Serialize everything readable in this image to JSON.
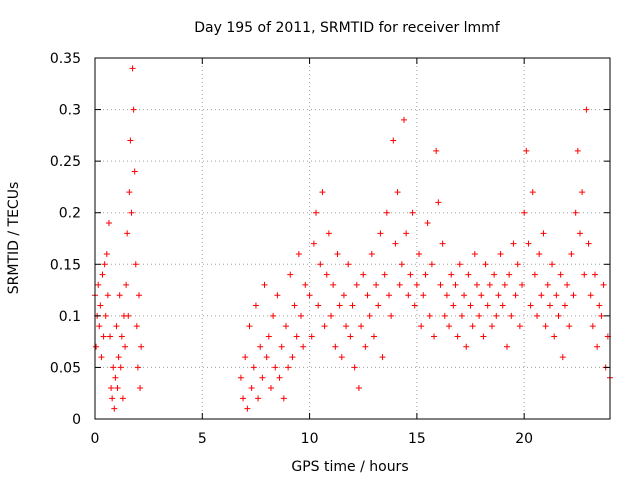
{
  "chart_data": {
    "type": "scatter",
    "title": "Day 195 of 2011, SRMTID for receiver lmmf",
    "xlabel": "GPS time / hours",
    "ylabel": "SRMTID / TECUs",
    "xlim": [
      0,
      24
    ],
    "ylim": [
      0,
      0.35
    ],
    "xticks": [
      0,
      5,
      10,
      15,
      20
    ],
    "xtick_labels": [
      "0",
      "5",
      "10",
      "15",
      "20"
    ],
    "yticks": [
      0,
      0.05,
      0.1,
      0.15,
      0.2,
      0.25,
      0.3,
      0.35
    ],
    "ytick_labels": [
      "0",
      "0.05",
      "0.1",
      "0.15",
      "0.2",
      "0.25",
      "0.3",
      "0.35"
    ],
    "grid": true,
    "marker": "+",
    "marker_color": "#ff0000",
    "series": [
      {
        "name": "SRMTID",
        "points": [
          [
            0.0,
            0.12
          ],
          [
            0.05,
            0.07
          ],
          [
            0.1,
            0.1
          ],
          [
            0.15,
            0.13
          ],
          [
            0.2,
            0.09
          ],
          [
            0.25,
            0.11
          ],
          [
            0.3,
            0.06
          ],
          [
            0.35,
            0.14
          ],
          [
            0.4,
            0.08
          ],
          [
            0.45,
            0.15
          ],
          [
            0.5,
            0.1
          ],
          [
            0.55,
            0.16
          ],
          [
            0.6,
            0.12
          ],
          [
            0.65,
            0.19
          ],
          [
            0.7,
            0.08
          ],
          [
            0.75,
            0.03
          ],
          [
            0.8,
            0.02
          ],
          [
            0.85,
            0.05
          ],
          [
            0.9,
            0.01
          ],
          [
            0.95,
            0.04
          ],
          [
            1.0,
            0.09
          ],
          [
            1.05,
            0.03
          ],
          [
            1.1,
            0.06
          ],
          [
            1.15,
            0.12
          ],
          [
            1.2,
            0.05
          ],
          [
            1.25,
            0.08
          ],
          [
            1.3,
            0.02
          ],
          [
            1.35,
            0.1
          ],
          [
            1.4,
            0.07
          ],
          [
            1.45,
            0.13
          ],
          [
            1.5,
            0.18
          ],
          [
            1.55,
            0.1
          ],
          [
            1.6,
            0.22
          ],
          [
            1.65,
            0.27
          ],
          [
            1.7,
            0.2
          ],
          [
            1.75,
            0.34
          ],
          [
            1.8,
            0.3
          ],
          [
            1.85,
            0.24
          ],
          [
            1.9,
            0.15
          ],
          [
            1.95,
            0.09
          ],
          [
            2.0,
            0.05
          ],
          [
            2.05,
            0.12
          ],
          [
            2.1,
            0.03
          ],
          [
            2.15,
            0.07
          ],
          [
            6.8,
            0.04
          ],
          [
            6.9,
            0.02
          ],
          [
            7.0,
            0.06
          ],
          [
            7.1,
            0.01
          ],
          [
            7.2,
            0.09
          ],
          [
            7.3,
            0.03
          ],
          [
            7.4,
            0.05
          ],
          [
            7.5,
            0.11
          ],
          [
            7.6,
            0.02
          ],
          [
            7.7,
            0.07
          ],
          [
            7.8,
            0.04
          ],
          [
            7.9,
            0.13
          ],
          [
            8.0,
            0.06
          ],
          [
            8.1,
            0.08
          ],
          [
            8.2,
            0.03
          ],
          [
            8.3,
            0.1
          ],
          [
            8.4,
            0.05
          ],
          [
            8.5,
            0.12
          ],
          [
            8.6,
            0.04
          ],
          [
            8.7,
            0.07
          ],
          [
            8.8,
            0.02
          ],
          [
            8.9,
            0.09
          ],
          [
            9.0,
            0.05
          ],
          [
            9.1,
            0.14
          ],
          [
            9.2,
            0.06
          ],
          [
            9.3,
            0.11
          ],
          [
            9.4,
            0.08
          ],
          [
            9.5,
            0.16
          ],
          [
            9.6,
            0.1
          ],
          [
            9.7,
            0.07
          ],
          [
            9.8,
            0.13
          ],
          [
            10.0,
            0.12
          ],
          [
            10.1,
            0.08
          ],
          [
            10.2,
            0.17
          ],
          [
            10.3,
            0.2
          ],
          [
            10.4,
            0.11
          ],
          [
            10.5,
            0.15
          ],
          [
            10.6,
            0.22
          ],
          [
            10.7,
            0.09
          ],
          [
            10.8,
            0.14
          ],
          [
            10.9,
            0.18
          ],
          [
            11.0,
            0.1
          ],
          [
            11.1,
            0.13
          ],
          [
            11.2,
            0.07
          ],
          [
            11.3,
            0.16
          ],
          [
            11.4,
            0.11
          ],
          [
            11.5,
            0.06
          ],
          [
            11.6,
            0.12
          ],
          [
            11.7,
            0.09
          ],
          [
            11.8,
            0.15
          ],
          [
            11.9,
            0.08
          ],
          [
            12.0,
            0.11
          ],
          [
            12.1,
            0.05
          ],
          [
            12.2,
            0.13
          ],
          [
            12.3,
            0.03
          ],
          [
            12.4,
            0.09
          ],
          [
            12.5,
            0.14
          ],
          [
            12.6,
            0.07
          ],
          [
            12.7,
            0.12
          ],
          [
            12.8,
            0.1
          ],
          [
            12.9,
            0.16
          ],
          [
            13.0,
            0.08
          ],
          [
            13.1,
            0.13
          ],
          [
            13.2,
            0.11
          ],
          [
            13.3,
            0.18
          ],
          [
            13.4,
            0.06
          ],
          [
            13.5,
            0.14
          ],
          [
            13.6,
            0.2
          ],
          [
            13.7,
            0.12
          ],
          [
            13.8,
            0.1
          ],
          [
            13.9,
            0.27
          ],
          [
            14.0,
            0.17
          ],
          [
            14.1,
            0.22
          ],
          [
            14.2,
            0.13
          ],
          [
            14.3,
            0.15
          ],
          [
            14.4,
            0.29
          ],
          [
            14.5,
            0.18
          ],
          [
            14.6,
            0.12
          ],
          [
            14.7,
            0.14
          ],
          [
            14.8,
            0.2
          ],
          [
            14.9,
            0.11
          ],
          [
            15.0,
            0.13
          ],
          [
            15.1,
            0.16
          ],
          [
            15.2,
            0.09
          ],
          [
            15.3,
            0.12
          ],
          [
            15.4,
            0.14
          ],
          [
            15.5,
            0.19
          ],
          [
            15.6,
            0.1
          ],
          [
            15.7,
            0.15
          ],
          [
            15.8,
            0.08
          ],
          [
            15.9,
            0.26
          ],
          [
            16.0,
            0.21
          ],
          [
            16.1,
            0.13
          ],
          [
            16.2,
            0.17
          ],
          [
            16.3,
            0.1
          ],
          [
            16.4,
            0.12
          ],
          [
            16.5,
            0.09
          ],
          [
            16.6,
            0.14
          ],
          [
            16.7,
            0.11
          ],
          [
            16.8,
            0.13
          ],
          [
            16.9,
            0.08
          ],
          [
            17.0,
            0.15
          ],
          [
            17.1,
            0.1
          ],
          [
            17.2,
            0.12
          ],
          [
            17.3,
            0.07
          ],
          [
            17.4,
            0.14
          ],
          [
            17.5,
            0.11
          ],
          [
            17.6,
            0.09
          ],
          [
            17.7,
            0.16
          ],
          [
            17.8,
            0.13
          ],
          [
            17.9,
            0.1
          ],
          [
            18.0,
            0.12
          ],
          [
            18.1,
            0.08
          ],
          [
            18.2,
            0.15
          ],
          [
            18.3,
            0.11
          ],
          [
            18.4,
            0.13
          ],
          [
            18.5,
            0.09
          ],
          [
            18.6,
            0.14
          ],
          [
            18.7,
            0.1
          ],
          [
            18.8,
            0.12
          ],
          [
            18.9,
            0.16
          ],
          [
            19.0,
            0.11
          ],
          [
            19.1,
            0.13
          ],
          [
            19.2,
            0.07
          ],
          [
            19.3,
            0.14
          ],
          [
            19.4,
            0.1
          ],
          [
            19.5,
            0.17
          ],
          [
            19.6,
            0.12
          ],
          [
            19.7,
            0.15
          ],
          [
            19.8,
            0.09
          ],
          [
            19.9,
            0.13
          ],
          [
            20.0,
            0.2
          ],
          [
            20.1,
            0.26
          ],
          [
            20.2,
            0.17
          ],
          [
            20.3,
            0.11
          ],
          [
            20.4,
            0.22
          ],
          [
            20.5,
            0.14
          ],
          [
            20.6,
            0.1
          ],
          [
            20.7,
            0.16
          ],
          [
            20.8,
            0.12
          ],
          [
            20.9,
            0.18
          ],
          [
            21.0,
            0.09
          ],
          [
            21.1,
            0.13
          ],
          [
            21.2,
            0.11
          ],
          [
            21.3,
            0.15
          ],
          [
            21.4,
            0.08
          ],
          [
            21.5,
            0.12
          ],
          [
            21.6,
            0.1
          ],
          [
            21.7,
            0.14
          ],
          [
            21.8,
            0.06
          ],
          [
            21.9,
            0.11
          ],
          [
            22.0,
            0.13
          ],
          [
            22.1,
            0.09
          ],
          [
            22.2,
            0.16
          ],
          [
            22.3,
            0.12
          ],
          [
            22.4,
            0.2
          ],
          [
            22.5,
            0.26
          ],
          [
            22.6,
            0.18
          ],
          [
            22.7,
            0.22
          ],
          [
            22.8,
            0.14
          ],
          [
            22.9,
            0.3
          ],
          [
            23.0,
            0.17
          ],
          [
            23.1,
            0.12
          ],
          [
            23.2,
            0.09
          ],
          [
            23.3,
            0.14
          ],
          [
            23.4,
            0.07
          ],
          [
            23.5,
            0.11
          ],
          [
            23.6,
            0.1
          ],
          [
            23.7,
            0.13
          ],
          [
            23.8,
            0.05
          ],
          [
            23.9,
            0.08
          ],
          [
            24.0,
            0.04
          ]
        ]
      }
    ]
  }
}
